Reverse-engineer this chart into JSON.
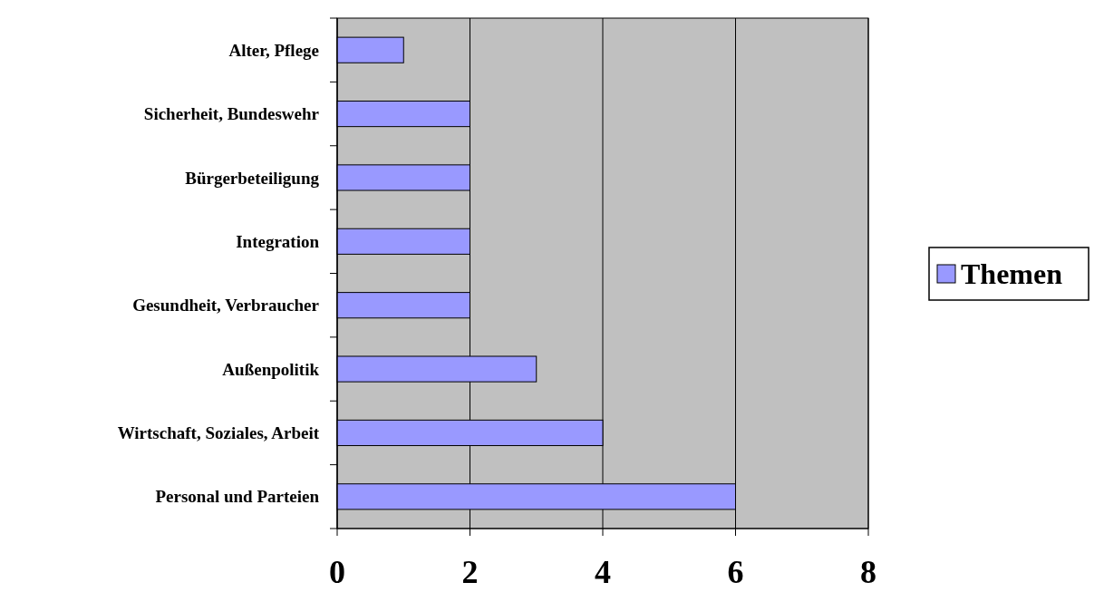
{
  "chart_data": {
    "type": "bar",
    "orientation": "horizontal",
    "categories": [
      "Alter, Pflege",
      "Sicherheit, Bundeswehr",
      "Bürgerbeteiligung",
      "Integration",
      "Gesundheit, Verbraucher",
      "Außenpolitik",
      "Wirtschaft, Soziales, Arbeit",
      "Personal und Parteien"
    ],
    "series": [
      {
        "name": "Themen",
        "color": "#9999ff",
        "values": [
          1,
          2,
          2,
          2,
          2,
          3,
          4,
          6
        ]
      }
    ],
    "xlim": [
      0,
      8
    ],
    "xticks": [
      0,
      2,
      4,
      6,
      8
    ],
    "grid": "x",
    "legend": "right"
  }
}
